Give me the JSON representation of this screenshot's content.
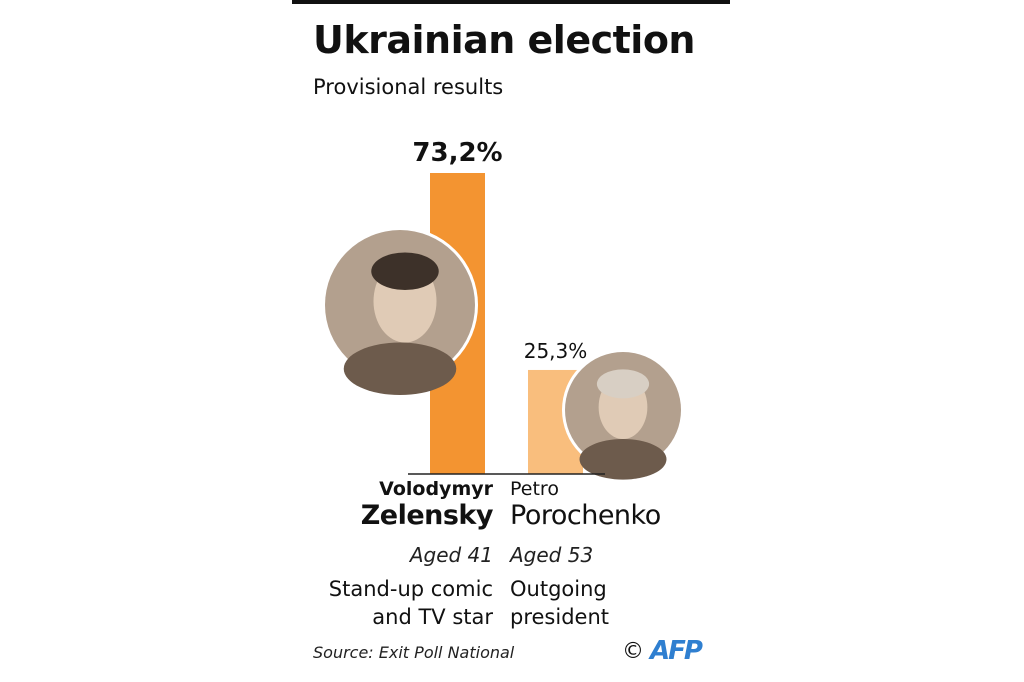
{
  "chart_data": {
    "type": "bar",
    "title": "Ukrainian election",
    "subtitle": "Provisional results",
    "categories": [
      "Volodymyr Zelensky",
      "Petro Porochenko"
    ],
    "values": [
      73.2,
      25.3
    ],
    "value_labels": [
      "73,2%",
      "25,3%"
    ],
    "colors": [
      "#f39431",
      "#f9be7d"
    ],
    "ylim": [
      0,
      100
    ],
    "grid": false,
    "candidates": [
      {
        "first_name": "Volodymyr",
        "last_name": "Zelensky",
        "age": "Aged 41",
        "description": [
          "Stand-up comic",
          "and TV star"
        ],
        "photo": "zelensky-portrait"
      },
      {
        "first_name": "Petro",
        "last_name": "Porochenko",
        "age": "Aged 53",
        "description": [
          "Outgoing",
          "president"
        ],
        "photo": "porochenko-portrait"
      }
    ]
  },
  "source": "Source: Exit Poll National",
  "credit": {
    "symbol": "©",
    "logo": "AFP"
  }
}
